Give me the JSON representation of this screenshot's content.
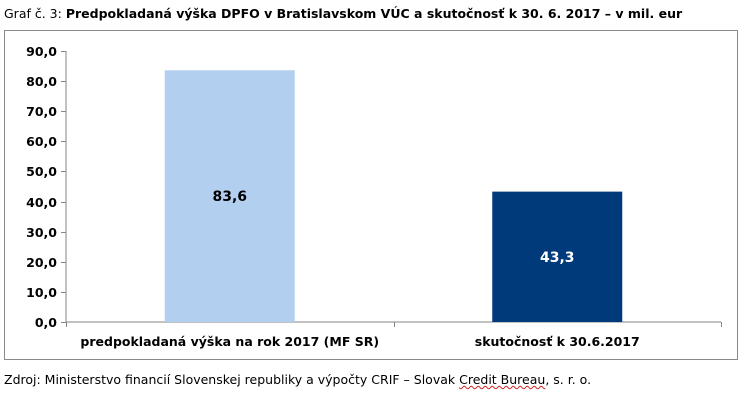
{
  "caption": {
    "prefix": "Graf č. 3: ",
    "title": "Predpokladaná výška DPFO v Bratislavskom VÚC a skutočnosť k 30. 6. 2017 – v mil. eur"
  },
  "chart_data": {
    "type": "bar",
    "categories": [
      "predpokladaná výška na rok 2017 (MF SR)",
      "skutočnosť k 30.6.2017"
    ],
    "values": [
      83.6,
      43.3
    ],
    "value_labels": [
      "83,6",
      "43,3"
    ],
    "bar_colors": [
      "#b3cff0",
      "#003a7a"
    ],
    "value_label_colors": [
      "#000000",
      "#ffffff"
    ],
    "ylim": [
      0,
      90
    ],
    "yticks": [
      0,
      10,
      20,
      30,
      40,
      50,
      60,
      70,
      80,
      90
    ],
    "ytick_labels": [
      "0,0",
      "10,0",
      "20,0",
      "30,0",
      "40,0",
      "50,0",
      "60,0",
      "70,0",
      "80,0",
      "90,0"
    ],
    "title": "",
    "xlabel": "",
    "ylabel": "",
    "grid": false,
    "legend": "none"
  },
  "source": {
    "before": "Zdroj: Ministerstvo financií Slovenskej republiky a výpočty CRIF – Slovak ",
    "squiggle": "Credit Bureau",
    "after": ", s. r. o."
  }
}
